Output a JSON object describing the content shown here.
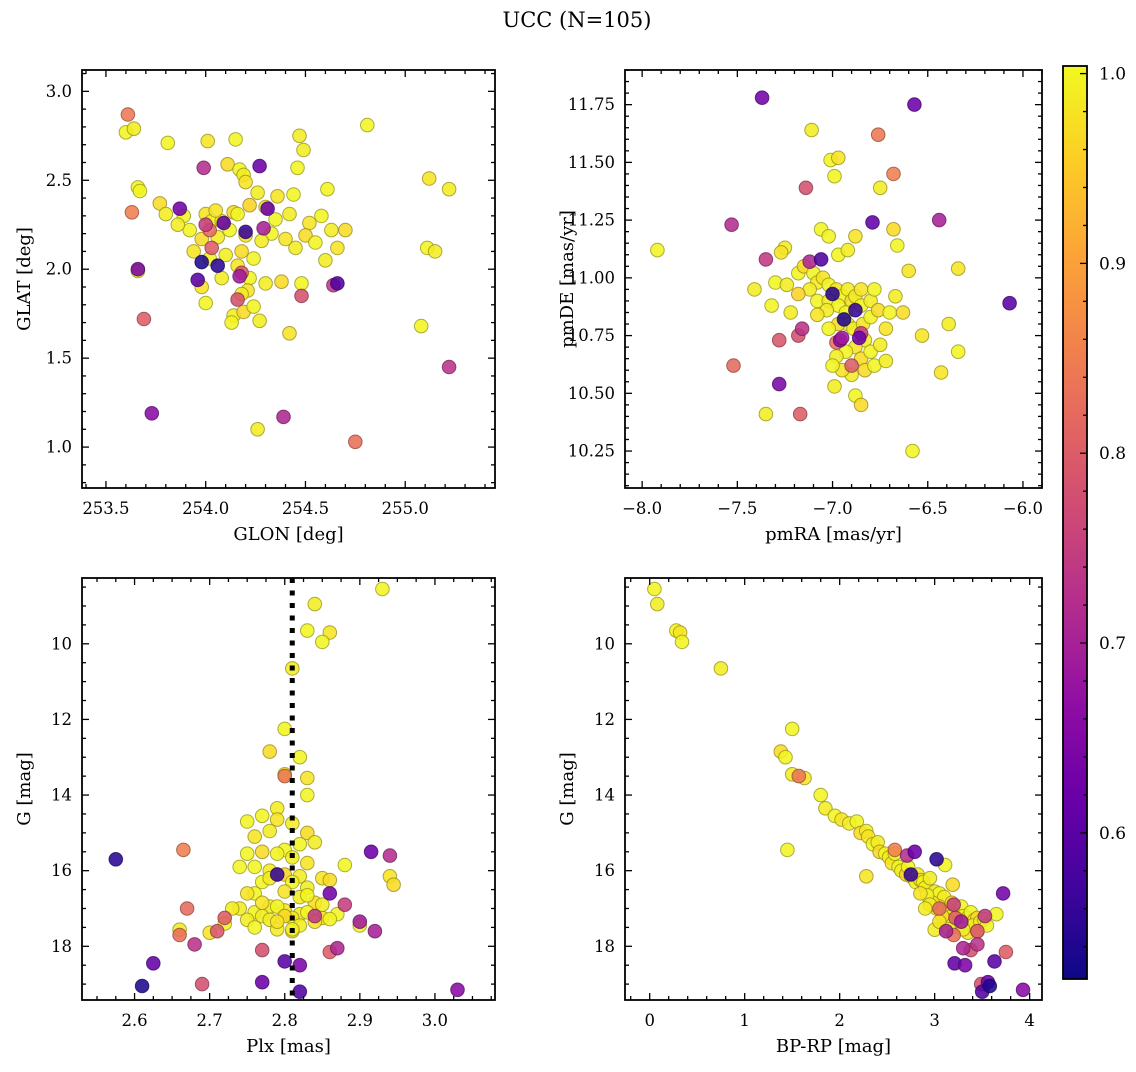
{
  "title": "UCC (N=105)",
  "colorbar": {
    "vmin": 0.523,
    "vmax": 1.004,
    "ticks": [
      1.0,
      0.9,
      0.8,
      0.7,
      0.6
    ],
    "tick_labels": [
      "1.0",
      "0.9",
      "0.8",
      "0.7",
      "0.6"
    ],
    "minor_step": 0.02,
    "colormap": "plasma"
  },
  "chart_data": {
    "type": "scatter",
    "title": "UCC (N=105)",
    "n_members": 105,
    "colormap": "plasma",
    "color_field": "membership_probability",
    "legend": "none",
    "grid": false,
    "star_fields": [
      "glon",
      "glat",
      "pmra",
      "pmde",
      "plx",
      "gmag",
      "bprp",
      "prob"
    ],
    "panels": [
      {
        "id": "position",
        "xlabel": "GLON [deg]",
        "ylabel": "GLAT [deg]",
        "xfield": 0,
        "yfield": 1,
        "xlim": [
          253.38,
          255.45
        ],
        "ylim": [
          0.77,
          3.12
        ],
        "xticks": [
          253.5,
          254.0,
          254.5,
          255.0
        ],
        "xtick_labels": [
          "253.5",
          "254.0",
          "254.5",
          "255.0"
        ],
        "yticks": [
          1.0,
          1.5,
          2.0,
          2.5,
          3.0
        ],
        "ytick_labels": [
          "1.0",
          "1.5",
          "2.0",
          "2.5",
          "3.0"
        ],
        "xminor": 0.1,
        "yminor": 0.1
      },
      {
        "id": "proper-motion",
        "xlabel": "pmRA [mas/yr]",
        "ylabel": "pmDE [mas/yr]",
        "xfield": 2,
        "yfield": 3,
        "xlim": [
          -8.09,
          -5.9
        ],
        "ylim": [
          10.09,
          11.9
        ],
        "xticks": [
          -8.0,
          -7.5,
          -7.0,
          -6.5,
          -6.0
        ],
        "xtick_labels": [
          "−8.0",
          "−7.5",
          "−7.0",
          "−6.5",
          "−6.0"
        ],
        "yticks": [
          10.25,
          10.5,
          10.75,
          11.0,
          11.25,
          11.5,
          11.75
        ],
        "ytick_labels": [
          "10.25",
          "10.50",
          "10.75",
          "11.00",
          "11.25",
          "11.50",
          "11.75"
        ],
        "xminor": 0.1,
        "yminor": 0.05
      },
      {
        "id": "parallax",
        "xlabel": "Plx [mas]",
        "ylabel": "G [mag]",
        "xfield": 4,
        "yfield": 5,
        "xlim": [
          2.53,
          3.08
        ],
        "ylim": [
          19.42,
          8.26
        ],
        "xticks": [
          2.6,
          2.7,
          2.8,
          2.9,
          3.0
        ],
        "xtick_labels": [
          "2.6",
          "2.7",
          "2.8",
          "2.9",
          "3.0"
        ],
        "yticks": [
          10,
          12,
          14,
          16,
          18
        ],
        "ytick_labels": [
          "10",
          "12",
          "14",
          "16",
          "18"
        ],
        "xminor": 0.025,
        "yminor": 0.5,
        "vline": 2.81
      },
      {
        "id": "cmd",
        "xlabel": "BP-RP [mag]",
        "ylabel": "G [mag]",
        "xfield": 6,
        "yfield": 5,
        "xlim": [
          -0.26,
          4.13
        ],
        "ylim": [
          19.42,
          8.26
        ],
        "xticks": [
          0,
          1,
          2,
          3,
          4
        ],
        "xtick_labels": [
          "0",
          "1",
          "2",
          "3",
          "4"
        ],
        "yticks": [
          10,
          12,
          14,
          16,
          18
        ],
        "ytick_labels": [
          "10",
          "12",
          "14",
          "16",
          "18"
        ],
        "xminor": 0.2,
        "yminor": 0.5
      }
    ],
    "stars": [
      [
        253.6,
        2.77,
        -7.92,
        11.12,
        2.93,
        8.55,
        0.05,
        1.0
      ],
      [
        253.64,
        2.79,
        -7.11,
        11.64,
        2.84,
        8.95,
        0.08,
        0.99
      ],
      [
        253.81,
        2.71,
        -7.01,
        11.51,
        2.83,
        9.65,
        0.28,
        1.0
      ],
      [
        254.01,
        2.72,
        -6.97,
        11.52,
        2.86,
        9.7,
        0.32,
        0.98
      ],
      [
        254.15,
        2.73,
        -6.99,
        11.44,
        2.85,
        9.95,
        0.34,
        1.0
      ],
      [
        254.47,
        2.75,
        -6.75,
        11.39,
        2.81,
        10.65,
        0.75,
        0.99
      ],
      [
        254.81,
        2.81,
        -7.06,
        11.21,
        2.8,
        12.25,
        1.5,
        1.0
      ],
      [
        254.11,
        2.59,
        -6.68,
        11.21,
        2.78,
        12.85,
        1.38,
        0.97
      ],
      [
        254.17,
        2.56,
        -6.66,
        11.14,
        2.82,
        13.0,
        1.43,
        1.0
      ],
      [
        254.19,
        2.53,
        -7.25,
        11.13,
        2.8,
        13.45,
        1.5,
        0.99
      ],
      [
        254.2,
        2.49,
        -7.27,
        11.11,
        2.83,
        13.55,
        1.63,
        0.98
      ],
      [
        254.46,
        2.57,
        -7.3,
        10.98,
        2.83,
        14.0,
        1.8,
        1.0
      ],
      [
        254.49,
        2.67,
        -7.24,
        10.97,
        2.79,
        14.35,
        1.85,
        0.99
      ],
      [
        254.61,
        2.45,
        -7.18,
        11.02,
        2.77,
        14.55,
        1.95,
        1.0
      ],
      [
        255.12,
        2.51,
        -6.34,
        11.04,
        2.79,
        14.65,
        2.02,
        0.98
      ],
      [
        255.22,
        2.45,
        -6.99,
        10.53,
        2.81,
        14.75,
        2.1,
        0.99
      ],
      [
        253.66,
        2.46,
        -6.88,
        10.49,
        2.75,
        14.7,
        2.18,
        1.0
      ],
      [
        253.77,
        2.37,
        -6.85,
        10.45,
        2.83,
        15.0,
        2.22,
        0.97
      ],
      [
        253.8,
        2.31,
        -7.35,
        10.41,
        2.78,
        14.95,
        2.28,
        0.99
      ],
      [
        253.89,
        2.3,
        -6.58,
        10.25,
        2.8,
        15.45,
        1.45,
        1.0
      ],
      [
        254.0,
        2.31,
        -6.43,
        10.59,
        2.76,
        15.1,
        2.3,
        0.98
      ],
      [
        254.03,
        2.27,
        -6.34,
        10.68,
        2.82,
        15.3,
        2.35,
        1.0
      ],
      [
        254.08,
        2.27,
        -6.39,
        10.8,
        2.84,
        15.25,
        2.4,
        0.99
      ],
      [
        254.14,
        2.32,
        -7.15,
        11.05,
        2.77,
        15.5,
        2.42,
        0.97
      ],
      [
        254.16,
        2.31,
        -7.1,
        11.02,
        2.79,
        15.55,
        2.48,
        1.0
      ],
      [
        254.3,
        2.35,
        -7.08,
        10.98,
        2.81,
        15.65,
        2.52,
        0.99
      ],
      [
        254.36,
        2.41,
        -7.05,
        11.0,
        2.83,
        15.8,
        2.55,
        0.98
      ],
      [
        254.44,
        2.42,
        -7.02,
        10.97,
        2.76,
        15.9,
        2.62,
        1.0
      ],
      [
        254.26,
        2.43,
        -7.12,
        10.95,
        2.78,
        16.0,
        2.65,
        0.99
      ],
      [
        254.22,
        2.36,
        -7.18,
        10.93,
        2.8,
        16.1,
        2.7,
        0.96
      ],
      [
        254.35,
        2.28,
        -7.08,
        10.9,
        2.74,
        15.9,
        2.72,
        1.0
      ],
      [
        254.42,
        2.31,
        -7.02,
        10.9,
        2.82,
        16.15,
        2.75,
        0.99
      ],
      [
        254.52,
        2.26,
        -6.98,
        10.95,
        2.85,
        16.2,
        2.78,
        0.98
      ],
      [
        254.58,
        2.3,
        -6.95,
        10.92,
        2.77,
        16.3,
        2.8,
        1.0
      ],
      [
        254.63,
        2.22,
        -6.92,
        10.95,
        2.79,
        16.1,
        2.82,
        0.99
      ],
      [
        254.5,
        2.19,
        -6.9,
        10.9,
        2.86,
        16.25,
        2.85,
        0.97
      ],
      [
        254.55,
        2.15,
        -6.97,
        10.88,
        2.81,
        16.3,
        2.88,
        1.0
      ],
      [
        254.45,
        2.12,
        -7.03,
        10.86,
        2.83,
        16.45,
        2.9,
        0.99
      ],
      [
        254.4,
        2.17,
        -7.08,
        10.84,
        2.94,
        16.15,
        2.28,
        0.98
      ],
      [
        254.33,
        2.2,
        -6.93,
        10.85,
        2.88,
        15.85,
        3.11,
        1.0
      ],
      [
        254.28,
        2.16,
        -6.88,
        10.92,
        2.78,
        16.2,
        2.95,
        0.99
      ],
      [
        254.2,
        2.19,
        -6.85,
        10.95,
        2.8,
        16.55,
        3.0,
        0.98
      ],
      [
        254.12,
        2.22,
        -6.85,
        10.88,
        2.76,
        16.6,
        3.05,
        1.0
      ],
      [
        254.06,
        2.18,
        -6.92,
        10.8,
        2.82,
        16.7,
        3.1,
        0.99
      ],
      [
        253.98,
        2.17,
        -6.97,
        10.8,
        2.945,
        16.37,
        3.19,
        0.97
      ],
      [
        253.92,
        2.22,
        -7.02,
        10.78,
        2.75,
        15.55,
        2.58,
        1.0
      ],
      [
        253.86,
        2.25,
        -6.89,
        10.78,
        2.78,
        16.95,
        3.05,
        0.99
      ],
      [
        253.94,
        2.1,
        -6.84,
        10.8,
        2.8,
        17.05,
        3.1,
        0.98
      ],
      [
        254.02,
        2.06,
        -6.8,
        10.83,
        2.76,
        17.1,
        3.15,
        1.0
      ],
      [
        254.1,
        2.08,
        -6.8,
        10.9,
        2.82,
        17.15,
        3.2,
        0.99
      ],
      [
        254.18,
        2.1,
        -6.76,
        10.86,
        2.84,
        16.85,
        3.18,
        0.97
      ],
      [
        254.24,
        2.06,
        -6.78,
        10.95,
        2.79,
        16.95,
        3.28,
        1.0
      ],
      [
        254.6,
        2.05,
        -6.83,
        10.73,
        2.77,
        17.2,
        3.3,
        0.99
      ],
      [
        254.66,
        2.12,
        -6.88,
        10.7,
        2.81,
        17.25,
        3.35,
        0.98
      ],
      [
        255.11,
        2.12,
        -6.93,
        10.68,
        2.83,
        17.1,
        3.38,
        1.0
      ],
      [
        255.15,
        2.1,
        -6.98,
        10.66,
        2.75,
        17.3,
        3.42,
        0.99
      ],
      [
        254.7,
        2.22,
        -6.85,
        10.65,
        2.85,
        17.25,
        3.45,
        0.97
      ],
      [
        253.67,
        2.44,
        -6.8,
        10.68,
        2.87,
        17.15,
        3.65,
        1.0
      ],
      [
        253.66,
        1.99,
        -6.75,
        10.71,
        2.66,
        17.56,
        3.0,
        0.99
      ],
      [
        254.16,
        2.02,
        -6.72,
        10.78,
        2.7,
        17.64,
        3.35,
        0.98
      ],
      [
        254.22,
        1.95,
        -6.7,
        10.85,
        2.72,
        17.4,
        3.22,
        1.0
      ],
      [
        254.3,
        1.92,
        -6.9,
        10.58,
        2.78,
        17.3,
        3.12,
        0.99
      ],
      [
        254.38,
        1.93,
        -6.83,
        10.6,
        2.8,
        17.2,
        3.08,
        0.97
      ],
      [
        254.48,
        1.92,
        -6.78,
        10.62,
        2.76,
        17.5,
        3.25,
        1.0
      ],
      [
        254.08,
        1.95,
        -6.72,
        10.64,
        2.82,
        17.45,
        3.4,
        0.99
      ],
      [
        253.98,
        1.9,
        -6.95,
        10.6,
        2.84,
        17.35,
        3.48,
        0.98
      ],
      [
        254.0,
        1.81,
        -7.0,
        10.62,
        2.86,
        17.28,
        3.52,
        1.0
      ],
      [
        254.14,
        1.74,
        -6.67,
        10.92,
        2.79,
        17.55,
        3.3,
        0.99
      ],
      [
        254.19,
        1.76,
        -6.63,
        10.85,
        2.81,
        17.6,
        3.45,
        0.97
      ],
      [
        254.13,
        1.7,
        -7.32,
        10.88,
        2.9,
        17.45,
        3.55,
        1.0
      ],
      [
        254.27,
        1.71,
        -7.22,
        10.85,
        2.74,
        17.0,
        3.02,
        0.99
      ],
      [
        254.42,
        1.64,
        -6.6,
        11.03,
        2.77,
        16.85,
        2.98,
        0.98
      ],
      [
        255.08,
        1.68,
        -6.97,
        11.1,
        2.83,
        16.65,
        2.92,
        1.0
      ],
      [
        254.26,
        1.1,
        -6.92,
        11.12,
        2.85,
        16.9,
        2.95,
        0.99
      ],
      [
        254.21,
        1.88,
        -6.88,
        11.18,
        2.79,
        17.35,
        3.05,
        0.98
      ],
      [
        254.24,
        1.79,
        -7.02,
        11.18,
        2.81,
        17.55,
        3.15,
        1.0
      ],
      [
        254.18,
        1.86,
        -7.41,
        10.95,
        2.73,
        17.0,
        2.9,
        0.99
      ],
      [
        254.05,
        2.33,
        -6.53,
        10.75,
        2.75,
        16.6,
        2.85,
        0.98
      ],
      [
        253.61,
        2.87,
        -6.76,
        11.62,
        2.8,
        13.5,
        1.57,
        0.84
      ],
      [
        253.63,
        2.32,
        -6.68,
        11.45,
        2.665,
        15.45,
        2.58,
        0.85
      ],
      [
        254.02,
        2.22,
        -7.52,
        10.62,
        2.67,
        17.0,
        3.05,
        0.82
      ],
      [
        254.03,
        2.12,
        -7.17,
        10.41,
        2.72,
        17.25,
        3.22,
        0.8
      ],
      [
        254.18,
        1.98,
        -7.28,
        10.73,
        2.71,
        17.6,
        3.45,
        0.79
      ],
      [
        254.48,
        1.85,
        -7.14,
        11.39,
        2.77,
        18.1,
        3.38,
        0.78
      ],
      [
        253.69,
        1.72,
        -6.9,
        10.62,
        2.86,
        18.15,
        3.75,
        0.8
      ],
      [
        254.16,
        1.83,
        -7.18,
        10.75,
        2.69,
        19.0,
        3.49,
        0.78
      ],
      [
        254.75,
        1.03,
        -6.98,
        10.72,
        2.66,
        17.7,
        3.2,
        0.83
      ],
      [
        253.99,
        2.57,
        -7.53,
        11.23,
        2.94,
        15.6,
        2.71,
        0.72
      ],
      [
        254.29,
        2.23,
        -6.44,
        11.25,
        2.92,
        17.6,
        3.12,
        0.7
      ],
      [
        254.64,
        1.91,
        -7.35,
        11.08,
        2.84,
        17.2,
        3.53,
        0.74
      ],
      [
        255.22,
        1.45,
        -7.16,
        10.78,
        2.68,
        17.95,
        3.45,
        0.73
      ],
      [
        253.73,
        1.19,
        -6.96,
        10.73,
        3.03,
        19.15,
        3.93,
        0.66
      ],
      [
        254.39,
        1.17,
        -7.12,
        11.07,
        2.87,
        18.05,
        3.3,
        0.71
      ],
      [
        254.17,
        1.96,
        -6.95,
        10.74,
        2.9,
        17.35,
        3.28,
        0.69
      ],
      [
        254.0,
        2.25,
        -6.85,
        10.76,
        2.88,
        16.9,
        3.2,
        0.75
      ],
      [
        254.27,
        2.58,
        -6.57,
        11.75,
        2.915,
        15.5,
        2.79,
        0.62
      ],
      [
        253.87,
        2.34,
        -7.37,
        11.78,
        2.86,
        16.6,
        3.72,
        0.63
      ],
      [
        254.09,
        2.26,
        -6.79,
        11.24,
        2.625,
        18.45,
        3.21,
        0.61
      ],
      [
        253.66,
        2.0,
        -7.28,
        10.54,
        2.82,
        18.5,
        3.32,
        0.64
      ],
      [
        253.96,
        1.94,
        -6.07,
        10.89,
        2.8,
        18.4,
        3.63,
        0.6
      ],
      [
        254.31,
        2.34,
        -6.86,
        10.74,
        2.77,
        18.95,
        3.56,
        0.62
      ],
      [
        254.66,
        1.92,
        -7.06,
        11.08,
        2.82,
        19.2,
        3.5,
        0.59
      ],
      [
        254.06,
        2.02,
        -7.0,
        10.93,
        2.575,
        15.7,
        3.02,
        0.55
      ],
      [
        253.98,
        2.04,
        -6.94,
        10.82,
        2.61,
        19.05,
        3.58,
        0.54
      ],
      [
        254.2,
        2.21,
        -6.88,
        10.86,
        2.79,
        16.1,
        2.75,
        0.56
      ]
    ]
  }
}
